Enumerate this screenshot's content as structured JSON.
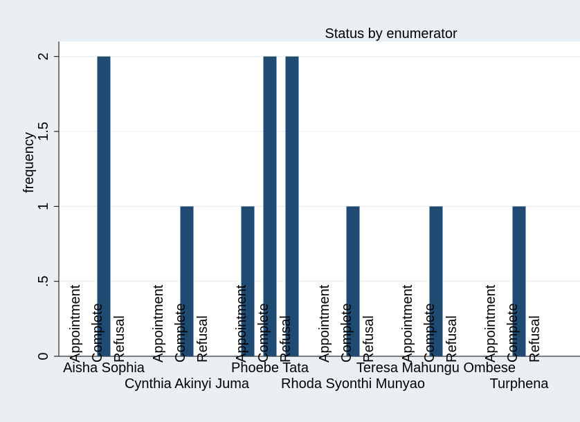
{
  "chart_data": {
    "type": "bar",
    "title": "Status by enumerator",
    "ylabel": "frequency",
    "xlabel": "",
    "ylim": [
      0,
      2.1
    ],
    "yticks": [
      {
        "value": 0,
        "label": "0"
      },
      {
        "value": 0.5,
        "label": ".5"
      },
      {
        "value": 1,
        "label": "1"
      },
      {
        "value": 1.5,
        "label": "1.5"
      },
      {
        "value": 2,
        "label": "2"
      }
    ],
    "grid": true,
    "bar_color": "#1f4a72",
    "background": "#e9eff3",
    "plot_background": "#ffffff",
    "groups": [
      {
        "name": "Aisha Sophia",
        "bars": [
          {
            "label": "Appointment",
            "value": 0
          },
          {
            "label": "Complete",
            "value": 2
          },
          {
            "label": "Refusal",
            "value": 0
          }
        ]
      },
      {
        "name": "Cynthia Akinyi Juma",
        "bars": [
          {
            "label": "Appointment",
            "value": 0
          },
          {
            "label": "Complete",
            "value": 1
          },
          {
            "label": "Refusal",
            "value": 0
          }
        ]
      },
      {
        "name": "Phoebe Tata",
        "bars": [
          {
            "label": "Appointment",
            "value": 1
          },
          {
            "label": "Complete",
            "value": 2
          },
          {
            "label": "Refusal",
            "value": 2
          }
        ]
      },
      {
        "name": "Rhoda Syonthi Munyao",
        "bars": [
          {
            "label": "Appointment",
            "value": 0
          },
          {
            "label": "Complete",
            "value": 1
          },
          {
            "label": "Refusal",
            "value": 0
          }
        ]
      },
      {
        "name": "Teresa Mahungu Ombese",
        "bars": [
          {
            "label": "Appointment",
            "value": 0
          },
          {
            "label": "Complete",
            "value": 1
          },
          {
            "label": "Refusal",
            "value": 0
          }
        ]
      },
      {
        "name": "Turphena",
        "bars": [
          {
            "label": "Appointment",
            "value": 0
          },
          {
            "label": "Complete",
            "value": 1
          },
          {
            "label": "Refusal",
            "value": 0
          }
        ]
      }
    ]
  }
}
